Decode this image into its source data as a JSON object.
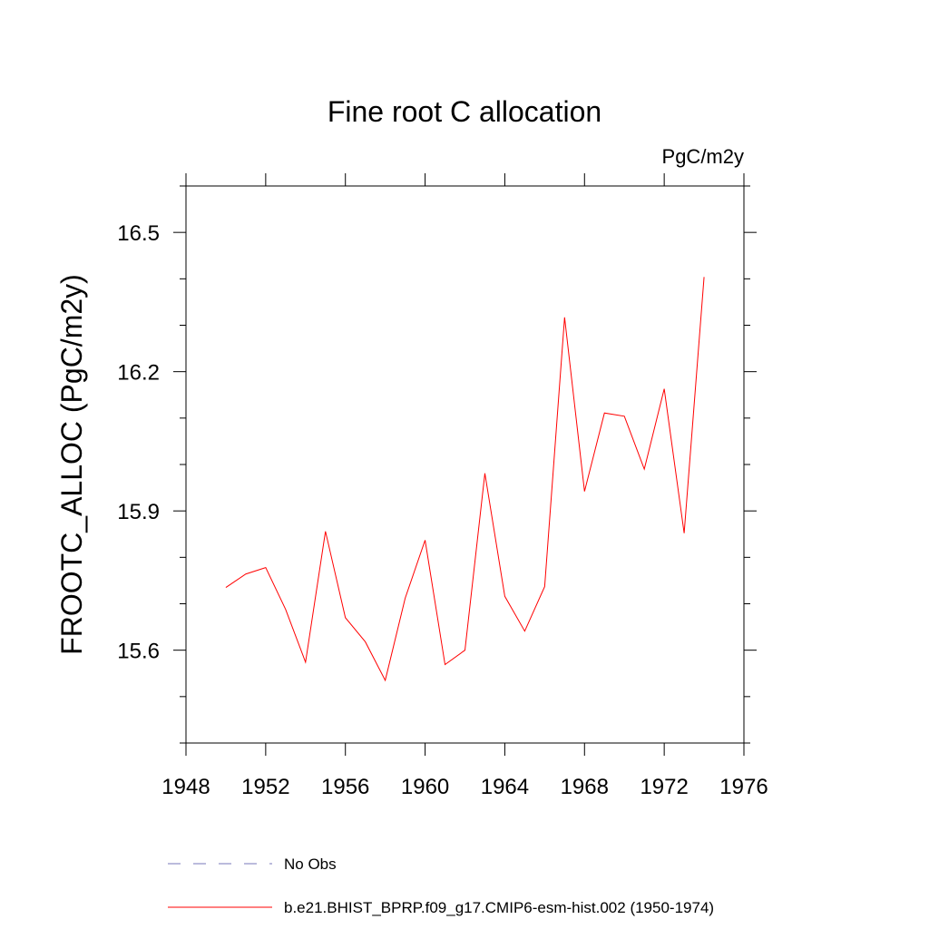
{
  "chart_data": {
    "type": "line",
    "title": "Fine root C allocation",
    "units_label": "PgC/m2y",
    "xlabel": "",
    "ylabel": "FROOTC_ALLOC  (PgC/m2y)",
    "xlim": [
      1948,
      1976
    ],
    "ylim": [
      15.4,
      16.6
    ],
    "x_ticks": [
      1948,
      1952,
      1956,
      1960,
      1964,
      1968,
      1972,
      1976
    ],
    "x_tick_labels": [
      "1948",
      "1952",
      "1956",
      "1960",
      "1964",
      "1968",
      "1972",
      "1976"
    ],
    "y_ticks": [
      15.6,
      15.9,
      16.2,
      16.5
    ],
    "y_tick_labels": [
      "15.6",
      "15.9",
      "16.2",
      "16.5"
    ],
    "grid": false,
    "legend_position": "bottom",
    "series": [
      {
        "name": "b.e21.BHIST_BPRP.f09_g17.CMIP6-esm-hist.002 (1950-1974)",
        "color": "#ff0000",
        "style": "solid",
        "x": [
          1950,
          1951,
          1952,
          1953,
          1954,
          1955,
          1956,
          1957,
          1958,
          1959,
          1960,
          1961,
          1962,
          1963,
          1964,
          1965,
          1966,
          1967,
          1968,
          1969,
          1970,
          1971,
          1972,
          1973,
          1974
        ],
        "values": [
          15.735,
          15.764,
          15.778,
          15.688,
          15.574,
          15.856,
          15.67,
          15.618,
          15.535,
          15.712,
          15.837,
          15.569,
          15.6,
          15.981,
          15.716,
          15.641,
          15.737,
          16.317,
          15.942,
          16.111,
          16.104,
          15.99,
          16.163,
          15.852,
          16.404
        ]
      }
    ],
    "legend": [
      {
        "label": "No Obs",
        "color": "#7777bb",
        "style": "dashed"
      },
      {
        "label": "b.e21.BHIST_BPRP.f09_g17.CMIP6-esm-hist.002 (1950-1974)",
        "color": "#ff0000",
        "style": "solid"
      }
    ]
  }
}
